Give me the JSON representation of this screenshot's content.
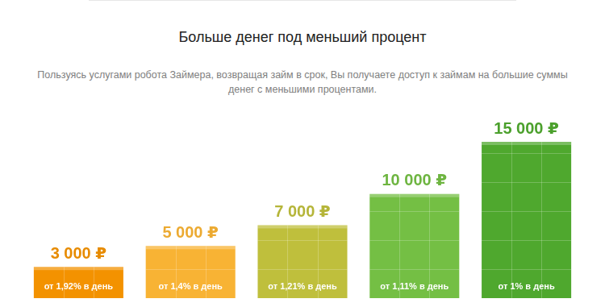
{
  "chart_data": {
    "type": "bar",
    "title": "Больше денег под меньший процент",
    "subtitle": "Пользуясь услугами робота Займера, возвращая займ в срок, Вы получаете доступ к займам на большие суммы денег с меньшими процентами.",
    "categories": [
      "от 1,92% в день",
      "от 1,4% в день",
      "от 1,21% в день",
      "от 1,11% в день",
      "от 1% в день"
    ],
    "values": [
      3000,
      5000,
      7000,
      10000,
      15000
    ],
    "value_labels": [
      "3 000 ₽",
      "5 000 ₽",
      "7 000 ₽",
      "10 000 ₽",
      "15 000 ₽"
    ],
    "data_labels": true,
    "colors": [
      "#f39200",
      "#f8b334",
      "#bfbf3c",
      "#74bf44",
      "#4fa82e"
    ],
    "ylim": [
      0,
      15000
    ],
    "grid": false,
    "tick_labels": false
  }
}
